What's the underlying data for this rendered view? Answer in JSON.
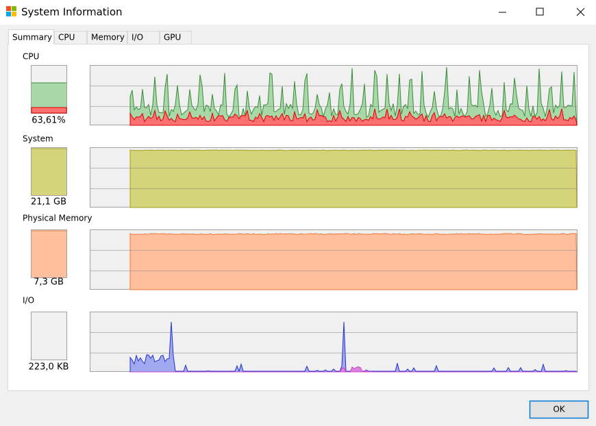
{
  "window": {
    "title": "System Information"
  },
  "tabs": [
    "Summary",
    "CPU",
    "Memory",
    "I/O",
    "GPU"
  ],
  "sections": [
    {
      "label": "CPU",
      "value": "63,61%"
    },
    {
      "label": "System",
      "value": "21,1 GB"
    },
    {
      "label": "Physical Memory",
      "value": "7,3 GB"
    },
    {
      "label": "I/O",
      "value": "223,0  KB"
    }
  ],
  "button": "OK"
}
